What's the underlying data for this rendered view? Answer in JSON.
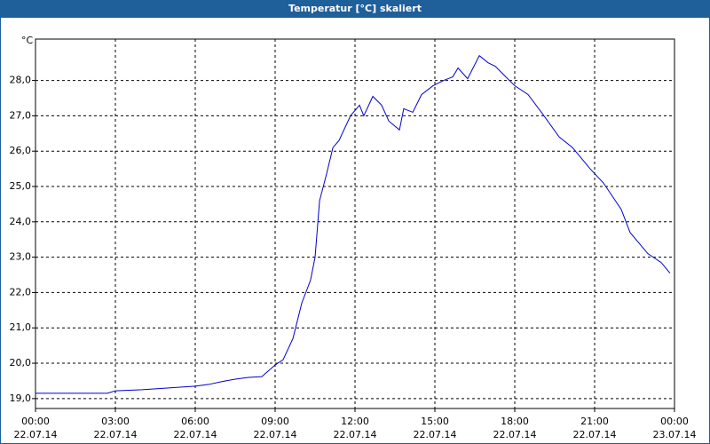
{
  "chart_data": {
    "type": "line",
    "title": "Temperatur [°C] skaliert",
    "y_label": "°C",
    "xlim": [
      0,
      24
    ],
    "ylim": [
      18.72,
      29.17
    ],
    "grid": true,
    "xticks": [
      {
        "value": 0,
        "label": [
          "00:00",
          "22.07.14"
        ]
      },
      {
        "value": 3,
        "label": [
          "03:00",
          "22.07.14"
        ]
      },
      {
        "value": 6,
        "label": [
          "06:00",
          "22.07.14"
        ]
      },
      {
        "value": 9,
        "label": [
          "09:00",
          "22.07.14"
        ]
      },
      {
        "value": 12,
        "label": [
          "12:00",
          "22.07.14"
        ]
      },
      {
        "value": 15,
        "label": [
          "15:00",
          "22.07.14"
        ]
      },
      {
        "value": 18,
        "label": [
          "18:00",
          "22.07.14"
        ]
      },
      {
        "value": 21,
        "label": [
          "21:00",
          "22.07.14"
        ]
      },
      {
        "value": 24,
        "label": [
          "00:00",
          "23.07.14"
        ]
      }
    ],
    "yticks": [
      {
        "value": 19,
        "label": "19,0"
      },
      {
        "value": 20,
        "label": "20,0"
      },
      {
        "value": 21,
        "label": "21,0"
      },
      {
        "value": 22,
        "label": "22,0"
      },
      {
        "value": 23,
        "label": "23,0"
      },
      {
        "value": 24,
        "label": "24,0"
      },
      {
        "value": 25,
        "label": "25,0"
      },
      {
        "value": 26,
        "label": "26,0"
      },
      {
        "value": 27,
        "label": "27,0"
      },
      {
        "value": 28,
        "label": "28,0"
      }
    ],
    "series": [
      {
        "color": "#0000cc",
        "x": [
          0,
          2.7,
          3,
          4,
          5,
          6,
          6.5,
          7,
          7.5,
          8,
          8.5,
          9,
          9.3,
          9.67,
          10,
          10.33,
          10.5,
          10.67,
          10.93,
          11.17,
          11.4,
          11.83,
          12.17,
          12.33,
          12.67,
          13,
          13.27,
          13.67,
          13.83,
          14.17,
          14.5,
          14.93,
          15.33,
          15.67,
          15.87,
          16.23,
          16.67,
          17,
          17.27,
          17.6,
          18,
          18.5,
          19,
          19.67,
          20.17,
          20.83,
          21.33,
          22,
          22.33,
          23,
          23.5,
          23.83
        ],
        "values": [
          19.15,
          19.15,
          19.22,
          19.25,
          19.3,
          19.35,
          19.4,
          19.48,
          19.55,
          19.6,
          19.62,
          19.95,
          20.1,
          20.7,
          21.7,
          22.35,
          23.0,
          24.6,
          25.35,
          26.1,
          26.3,
          27.0,
          27.3,
          27.0,
          27.55,
          27.3,
          26.85,
          26.6,
          27.2,
          27.1,
          27.6,
          27.85,
          28.0,
          28.1,
          28.35,
          28.05,
          28.7,
          28.5,
          28.4,
          28.15,
          27.85,
          27.6,
          27.1,
          26.4,
          26.1,
          25.5,
          25.1,
          24.35,
          23.7,
          23.1,
          22.85,
          22.55
        ]
      }
    ]
  }
}
